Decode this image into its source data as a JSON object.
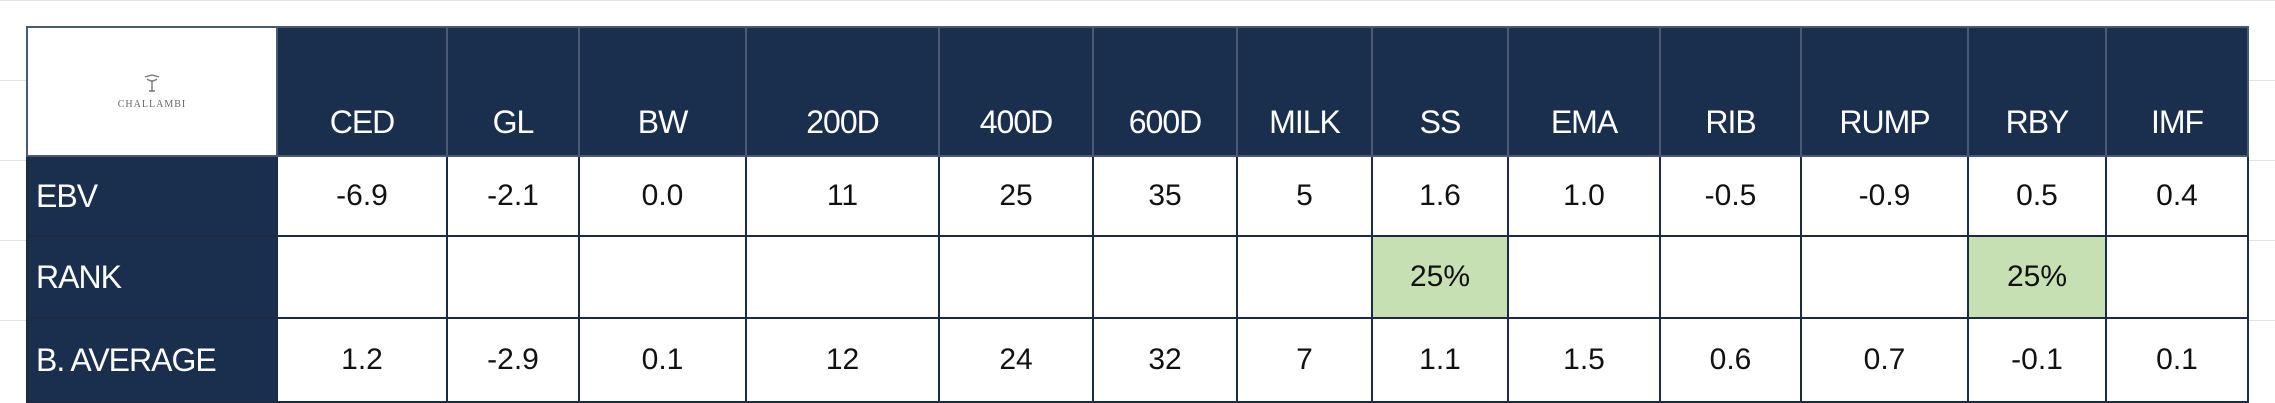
{
  "header": {
    "logo": "CHALLAMBI"
  },
  "table": {
    "columns": [
      "CED",
      "GL",
      "BW",
      "200D",
      "400D",
      "600D",
      "MILK",
      "SS",
      "EMA",
      "RIB",
      "RUMP",
      "RBY",
      "IMF"
    ],
    "rows": [
      {
        "label": "EBV",
        "cells": [
          "-6.9",
          "-2.1",
          "0.0",
          "11",
          "25",
          "35",
          "5",
          "1.6",
          "1.0",
          "-0.5",
          "-0.9",
          "0.5",
          "0.4"
        ]
      },
      {
        "label": "RANK",
        "cells": [
          null,
          null,
          null,
          null,
          null,
          null,
          null,
          "25%",
          null,
          null,
          null,
          "25%",
          null
        ]
      },
      {
        "label": "B. AVERAGE",
        "cells": [
          "1.2",
          "-2.9",
          "0.1",
          "12",
          "24",
          "32",
          "7",
          "1.1",
          "1.5",
          "0.6",
          "0.7",
          "-0.1",
          "0.1"
        ]
      }
    ]
  }
}
